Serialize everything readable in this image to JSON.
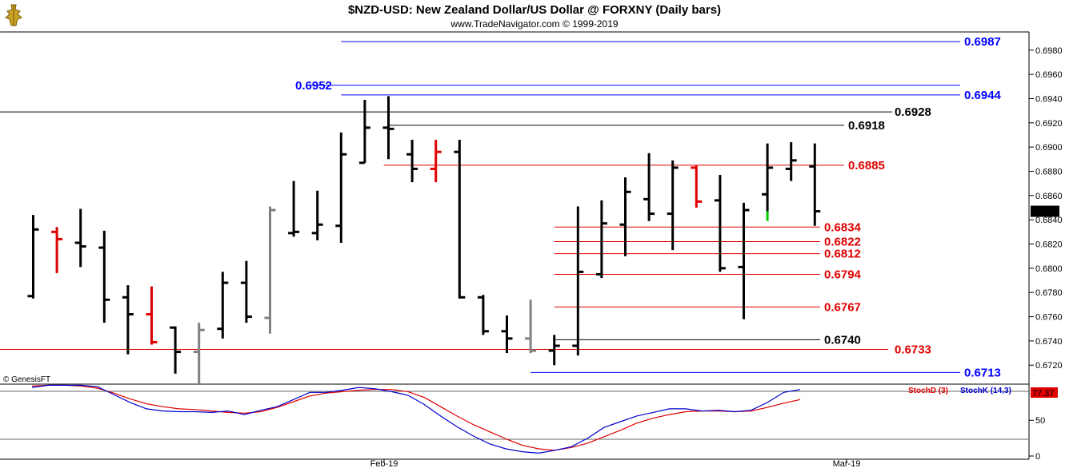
{
  "header": {
    "title": "$NZD-USD:  New Zealand Dollar/US Dollar @ FORXNY  (Daily bars)",
    "subtitle": "www.TradeNavigator.com © 1999-2019"
  },
  "watermark": "© GenesisFT",
  "logo_icon": "trade-navigator-logo-icon",
  "colors": {
    "up_bar": "#000000",
    "down_bar": "#e00000",
    "gray_bar": "#808080",
    "highlight_bar": "#00cc00",
    "level_blue": "#0000ff",
    "level_red": "#e00000",
    "level_black": "#000000",
    "stoch_d": "#e00000",
    "stoch_k": "#0000cc",
    "grid": "#e0e0e0"
  },
  "chart_data": [
    {
      "type": "ohlc",
      "title": "$NZD-USD:  New Zealand Dollar/US Dollar @ FORXNY  (Daily bars)",
      "ylim": [
        0.6705,
        0.6995
      ],
      "yticks": [
        "0.6720",
        "0.6740",
        "0.6760",
        "0.6780",
        "0.6800",
        "0.6820",
        "0.6840",
        "0.6860",
        "0.6880",
        "0.6900",
        "0.6920",
        "0.6940",
        "0.6960",
        "0.6980"
      ],
      "xlabels": [
        "Feb-19",
        "Mar-19"
      ],
      "last_price": "0.6847",
      "bars": [
        {
          "o": 0.6777,
          "h": 0.6844,
          "l": 0.6775,
          "c": 0.6832,
          "color": "black"
        },
        {
          "o": 0.683,
          "h": 0.6834,
          "l": 0.6796,
          "c": 0.6824,
          "color": "red"
        },
        {
          "o": 0.6821,
          "h": 0.6849,
          "l": 0.6801,
          "c": 0.6818,
          "color": "black"
        },
        {
          "o": 0.6817,
          "h": 0.6831,
          "l": 0.6755,
          "c": 0.6774,
          "color": "black"
        },
        {
          "o": 0.6776,
          "h": 0.6786,
          "l": 0.6729,
          "c": 0.6762,
          "color": "black"
        },
        {
          "o": 0.6762,
          "h": 0.6785,
          "l": 0.6737,
          "c": 0.6739,
          "color": "red"
        },
        {
          "o": 0.6751,
          "h": 0.6752,
          "l": 0.6713,
          "c": 0.6731,
          "color": "black"
        },
        {
          "o": 0.6731,
          "h": 0.6755,
          "l": 0.6705,
          "c": 0.6749,
          "color": "gray"
        },
        {
          "o": 0.675,
          "h": 0.6797,
          "l": 0.6742,
          "c": 0.6788,
          "color": "black"
        },
        {
          "o": 0.6788,
          "h": 0.6806,
          "l": 0.6755,
          "c": 0.676,
          "color": "black"
        },
        {
          "o": 0.6759,
          "h": 0.6851,
          "l": 0.6746,
          "c": 0.6848,
          "color": "gray"
        },
        {
          "o": 0.6829,
          "h": 0.6872,
          "l": 0.6826,
          "c": 0.683,
          "color": "black"
        },
        {
          "o": 0.6829,
          "h": 0.6864,
          "l": 0.6823,
          "c": 0.6836,
          "color": "black"
        },
        {
          "o": 0.6835,
          "h": 0.6912,
          "l": 0.6821,
          "c": 0.6894,
          "color": "black"
        },
        {
          "o": 0.6887,
          "h": 0.6939,
          "l": 0.6887,
          "c": 0.6916,
          "color": "black"
        },
        {
          "o": 0.6916,
          "h": 0.6942,
          "l": 0.689,
          "c": 0.6915,
          "color": "black"
        },
        {
          "o": 0.6894,
          "h": 0.6906,
          "l": 0.6871,
          "c": 0.6882,
          "color": "black"
        },
        {
          "o": 0.6882,
          "h": 0.6906,
          "l": 0.6871,
          "c": 0.6896,
          "color": "red"
        },
        {
          "o": 0.6896,
          "h": 0.6906,
          "l": 0.6775,
          "c": 0.6776,
          "color": "black"
        },
        {
          "o": 0.6776,
          "h": 0.6778,
          "l": 0.6745,
          "c": 0.6748,
          "color": "black"
        },
        {
          "o": 0.6748,
          "h": 0.6761,
          "l": 0.673,
          "c": 0.6742,
          "color": "black"
        },
        {
          "o": 0.6742,
          "h": 0.6774,
          "l": 0.673,
          "c": 0.6732,
          "color": "gray"
        },
        {
          "o": 0.6732,
          "h": 0.6745,
          "l": 0.672,
          "c": 0.6736,
          "color": "black"
        },
        {
          "o": 0.6736,
          "h": 0.6851,
          "l": 0.6728,
          "c": 0.6797,
          "color": "black"
        },
        {
          "o": 0.6795,
          "h": 0.6856,
          "l": 0.6792,
          "c": 0.6837,
          "color": "black"
        },
        {
          "o": 0.6836,
          "h": 0.6875,
          "l": 0.681,
          "c": 0.6863,
          "color": "black"
        },
        {
          "o": 0.6857,
          "h": 0.6895,
          "l": 0.6839,
          "c": 0.6845,
          "color": "black"
        },
        {
          "o": 0.6845,
          "h": 0.6889,
          "l": 0.6815,
          "c": 0.6883,
          "color": "black"
        },
        {
          "o": 0.6883,
          "h": 0.6885,
          "l": 0.685,
          "c": 0.6855,
          "color": "red"
        },
        {
          "o": 0.6856,
          "h": 0.6877,
          "l": 0.6797,
          "c": 0.68,
          "color": "black"
        },
        {
          "o": 0.6801,
          "h": 0.6854,
          "l": 0.6758,
          "c": 0.6848,
          "color": "black"
        },
        {
          "o": 0.6861,
          "h": 0.6903,
          "l": 0.6847,
          "c": 0.6883,
          "color": "black",
          "highlight": true
        },
        {
          "o": 0.6882,
          "h": 0.6904,
          "l": 0.6872,
          "c": 0.6889,
          "color": "black"
        },
        {
          "o": 0.6884,
          "h": 0.6903,
          "l": 0.6835,
          "c": 0.6847,
          "color": "black"
        }
      ],
      "levels": [
        {
          "label": "0.6987",
          "value": 0.6987,
          "color": "blue",
          "from_bar": 13.0
        },
        {
          "label": "0.6952",
          "value": 0.6951,
          "color": "blue",
          "from_bar": 11.6,
          "label_side": "left"
        },
        {
          "label": "0.6944",
          "value": 0.6943,
          "color": "blue",
          "from_bar": 13.0
        },
        {
          "label": "0.6928",
          "value": 0.6929,
          "color": "black",
          "from_bar": -1.0
        },
        {
          "label": "0.6918",
          "value": 0.6918,
          "color": "black",
          "from_bar": 15.0
        },
        {
          "label": "0.6885",
          "value": 0.6885,
          "color": "red",
          "from_bar": 14.8
        },
        {
          "label": "0.6834",
          "value": 0.6834,
          "color": "red",
          "from_bar": 22.0
        },
        {
          "label": "0.6822",
          "value": 0.6822,
          "color": "red",
          "from_bar": 22.0
        },
        {
          "label": "0.6812",
          "value": 0.6812,
          "color": "red",
          "from_bar": 22.0
        },
        {
          "label": "0.6794",
          "value": 0.6795,
          "color": "red",
          "from_bar": 22.0
        },
        {
          "label": "0.6767",
          "value": 0.6768,
          "color": "red",
          "from_bar": 22.0
        },
        {
          "label": "0.6740",
          "value": 0.6741,
          "color": "black",
          "from_bar": 22.0
        },
        {
          "label": "0.6733",
          "value": 0.6733,
          "color": "red",
          "from_bar": -1.0
        },
        {
          "label": "0.6713",
          "value": 0.6714,
          "color": "blue",
          "from_bar": 21.0
        }
      ]
    },
    {
      "type": "line",
      "title": "",
      "legend": [
        "StochD (3)",
        "StochK (14,3)"
      ],
      "ylim": [
        0,
        105
      ],
      "yticks": [
        "0",
        "50"
      ],
      "last_value": "77.37",
      "series": [
        {
          "name": "StochD (3)",
          "color": "red",
          "values": [
            98,
            99,
            99,
            98,
            95,
            88,
            80,
            73,
            69,
            66,
            65,
            63,
            61,
            60,
            62,
            68,
            76,
            84,
            88,
            90,
            92,
            93,
            93,
            90,
            82,
            69,
            56,
            44,
            34,
            24,
            15,
            10,
            8,
            12,
            18,
            27,
            36,
            46,
            53,
            58,
            62,
            63,
            63,
            62,
            63,
            68,
            74,
            79
          ]
        },
        {
          "name": "StochK (14,3)",
          "color": "blue",
          "values": [
            96,
            99,
            99,
            99,
            97,
            86,
            75,
            66,
            63,
            62,
            62,
            61,
            63,
            58,
            64,
            69,
            79,
            89,
            89,
            92,
            96,
            94,
            90,
            85,
            72,
            56,
            41,
            28,
            17,
            10,
            6,
            4,
            8,
            13,
            25,
            40,
            48,
            56,
            61,
            66,
            66,
            63,
            64,
            62,
            64,
            75,
            89,
            93
          ]
        }
      ]
    }
  ]
}
